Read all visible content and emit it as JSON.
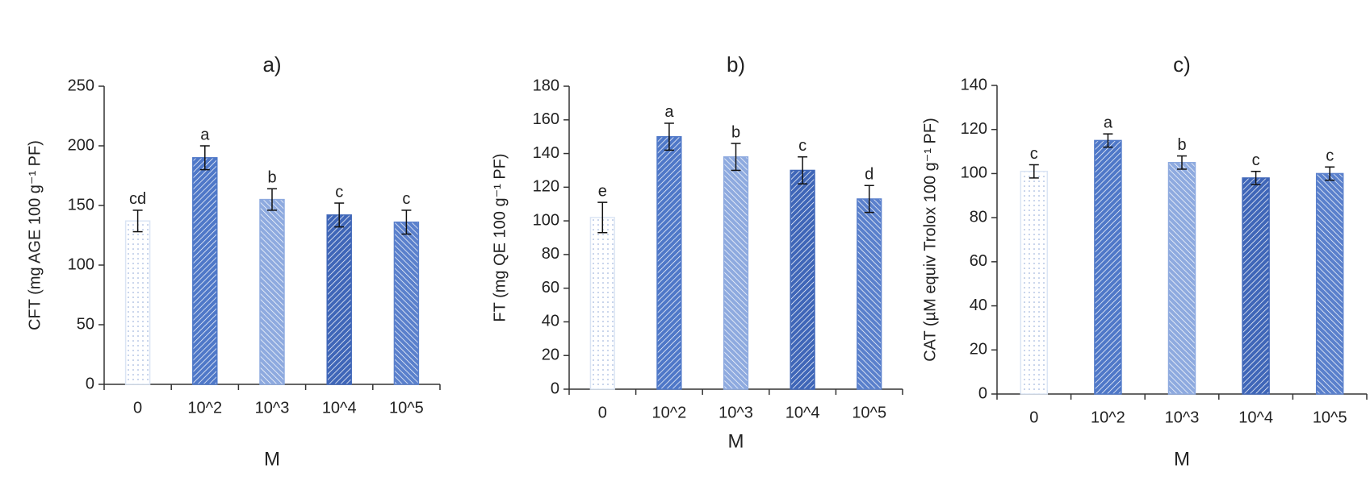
{
  "chart_data": [
    {
      "type": "bar",
      "title": "a)",
      "x_label": "M",
      "y_label": "CFT (mg AGE 100 g⁻¹ PF)",
      "categories": [
        "0",
        "10^2",
        "10^3",
        "10^4",
        "10^5"
      ],
      "values": [
        137,
        190,
        155,
        142,
        136
      ],
      "errors": [
        9,
        10,
        9,
        10,
        10
      ],
      "letters": [
        "cd",
        "a",
        "b",
        "c",
        "c"
      ],
      "colors": [
        "#dbe5f4",
        "#4f78c8",
        "#8eaadf",
        "#3f66b8",
        "#5a80cc"
      ],
      "ylim": [
        0,
        250
      ],
      "yticks": [
        0,
        50,
        100,
        150,
        200,
        250
      ]
    },
    {
      "type": "bar",
      "title": "b)",
      "x_label": "M",
      "y_label": "FT (mg QE 100 g⁻¹ PF)",
      "categories": [
        "0",
        "10^2",
        "10^3",
        "10^4",
        "10^5"
      ],
      "values": [
        102,
        150,
        138,
        130,
        113
      ],
      "errors": [
        9,
        8,
        8,
        8,
        8
      ],
      "letters": [
        "e",
        "a",
        "b",
        "c",
        "d"
      ],
      "colors": [
        "#dbe5f4",
        "#4f78c8",
        "#8eaadf",
        "#3f66b8",
        "#5a80cc"
      ],
      "ylim": [
        0,
        180
      ],
      "yticks": [
        0,
        20,
        40,
        60,
        80,
        100,
        120,
        140,
        160,
        180
      ]
    },
    {
      "type": "bar",
      "title": "c)",
      "x_label": "M",
      "y_label": "CAT (µM equiv Trolox 100 g⁻¹ PF)",
      "categories": [
        "0",
        "10^2",
        "10^3",
        "10^4",
        "10^5"
      ],
      "values": [
        101,
        115,
        105,
        98,
        100
      ],
      "errors": [
        3,
        3,
        3,
        3,
        3
      ],
      "letters": [
        "c",
        "a",
        "b",
        "c",
        "c"
      ],
      "colors": [
        "#dbe5f4",
        "#4f78c8",
        "#8eaadf",
        "#3f66b8",
        "#5a80cc"
      ],
      "ylim": [
        0,
        140
      ],
      "yticks": [
        0,
        20,
        40,
        60,
        80,
        100,
        120,
        140
      ]
    }
  ]
}
